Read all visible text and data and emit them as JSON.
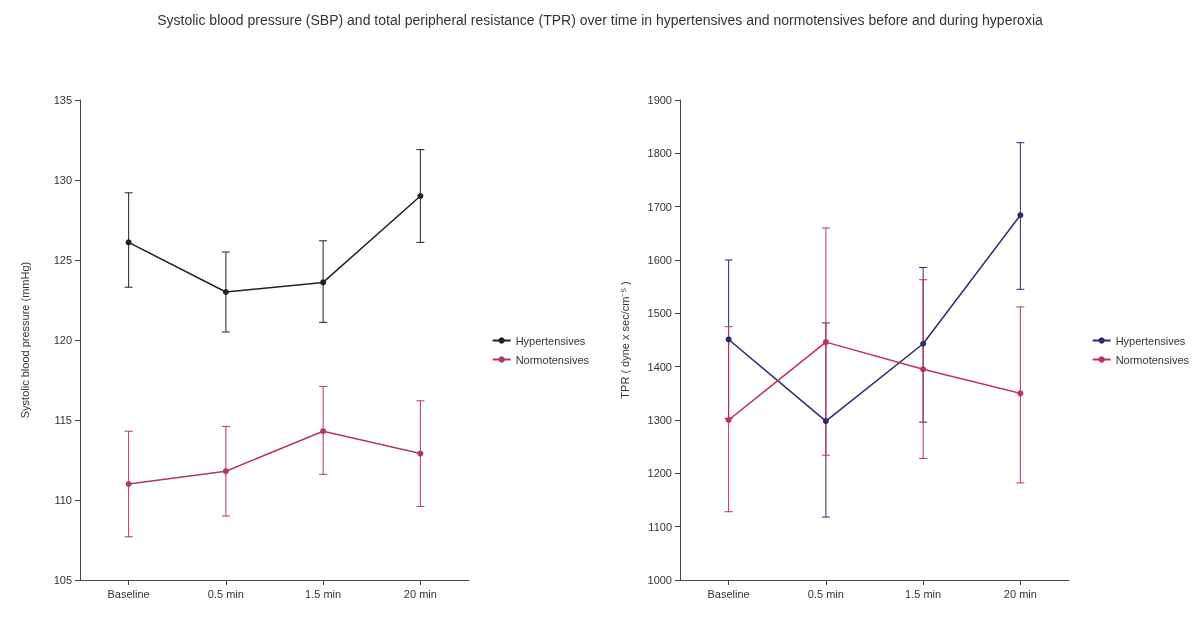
{
  "chart_data": [
    {
      "type": "line",
      "title": "Systolic blood pressure (SBP) and total peripheral resistance (TPR) over time in hypertensives and normotensives before and during hyperoxia",
      "ylabel": "Systolic blood pressure (mmHg)",
      "categories": [
        "Baseline",
        "0.5 min",
        "1.5 min",
        "20 min"
      ],
      "series": [
        {
          "name": "Hypertensives",
          "color": "#222222",
          "values": [
            126.1,
            123.0,
            123.6,
            129.0
          ],
          "errors": [
            [
              123.3,
              129.2
            ],
            [
              120.5,
              125.5
            ],
            [
              121.1,
              126.2
            ],
            [
              126.1,
              131.9
            ]
          ]
        },
        {
          "name": "Normotensives",
          "color": "#b03a5a",
          "values": [
            111.0,
            111.8,
            114.3,
            112.9
          ],
          "errors": [
            [
              107.7,
              114.3
            ],
            [
              109.0,
              114.6
            ],
            [
              111.6,
              117.1
            ],
            [
              109.6,
              116.2
            ]
          ]
        }
      ],
      "ylim": [
        105,
        135
      ],
      "yticks": [
        105,
        110,
        115,
        120,
        125,
        130,
        135
      ],
      "grid": false,
      "legend": "right",
      "marker": "circle",
      "line_style": "solid"
    },
    {
      "type": "line",
      "ylabel": "TPR ( dyne x sec/cm⁻⁵ )",
      "categories": [
        "Baseline",
        "0.5 min",
        "1.5 min",
        "20 min"
      ],
      "series": [
        {
          "name": "Hypertensives",
          "color": "#2b2b70",
          "values": [
            1451,
            1298,
            1443,
            1684
          ],
          "errors": [
            [
              1303,
              1600
            ],
            [
              1118,
              1482
            ],
            [
              1296,
              1586
            ],
            [
              1545,
              1820
            ]
          ]
        },
        {
          "name": "Normotensives",
          "color": "#c0305a",
          "values": [
            1300,
            1446,
            1395,
            1350
          ],
          "errors": [
            [
              1128,
              1475
            ],
            [
              1234,
              1660
            ],
            [
              1228,
              1563
            ],
            [
              1182,
              1512
            ]
          ]
        }
      ],
      "ylim": [
        1000,
        1900
      ],
      "yticks": [
        1000,
        1100,
        1200,
        1300,
        1400,
        1500,
        1600,
        1700,
        1800,
        1900
      ],
      "grid": false,
      "legend": "right",
      "marker": "circle",
      "line_style": "solid"
    }
  ]
}
